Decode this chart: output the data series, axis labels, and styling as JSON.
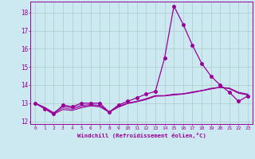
{
  "xlabel": "Windchill (Refroidissement éolien,°C)",
  "background_color": "#cce8f0",
  "grid_color": "#aacccc",
  "line_color": "#990099",
  "x_ticks": [
    0,
    1,
    2,
    3,
    4,
    5,
    6,
    7,
    8,
    9,
    10,
    11,
    12,
    13,
    14,
    15,
    16,
    17,
    18,
    19,
    20,
    21,
    22,
    23
  ],
  "ylim": [
    11.85,
    18.6
  ],
  "xlim": [
    -0.5,
    23.5
  ],
  "yticks": [
    12,
    13,
    14,
    15,
    16,
    17,
    18
  ],
  "series": [
    {
      "x": [
        0,
        1,
        2,
        3,
        4,
        5,
        6,
        7,
        8,
        9,
        10,
        11,
        12,
        13,
        14,
        15,
        16,
        17,
        18,
        19,
        20,
        21,
        22,
        23
      ],
      "y": [
        13.0,
        12.7,
        12.4,
        12.9,
        12.8,
        13.0,
        13.0,
        13.0,
        12.5,
        12.9,
        13.1,
        13.3,
        13.5,
        13.65,
        15.5,
        18.35,
        17.35,
        16.2,
        15.2,
        14.5,
        14.0,
        13.6,
        13.1,
        13.4
      ],
      "marker": "o",
      "marker_size": 2.5,
      "linewidth": 0.9,
      "linestyle": "-"
    },
    {
      "x": [
        0,
        1,
        2,
        3,
        4,
        5,
        6,
        7,
        8,
        9,
        10,
        11,
        12,
        13,
        14,
        15,
        16,
        17,
        18,
        19,
        20,
        21,
        22,
        23
      ],
      "y": [
        13.0,
        12.7,
        12.4,
        12.65,
        12.6,
        12.75,
        12.85,
        12.8,
        12.5,
        12.78,
        12.98,
        13.08,
        13.2,
        13.38,
        13.4,
        13.45,
        13.5,
        13.58,
        13.68,
        13.78,
        13.88,
        13.8,
        13.55,
        13.45
      ],
      "marker": null,
      "marker_size": 0,
      "linewidth": 0.8,
      "linestyle": "-"
    },
    {
      "x": [
        0,
        1,
        2,
        3,
        4,
        5,
        6,
        7,
        8,
        9,
        10,
        11,
        12,
        13,
        14,
        15,
        16,
        17,
        18,
        19,
        20,
        21,
        22,
        23
      ],
      "y": [
        13.0,
        12.78,
        12.48,
        12.82,
        12.75,
        12.88,
        12.92,
        12.88,
        12.52,
        12.83,
        13.01,
        13.11,
        13.25,
        13.42,
        13.42,
        13.5,
        13.52,
        13.62,
        13.7,
        13.82,
        13.88,
        13.83,
        13.6,
        13.5
      ],
      "marker": null,
      "marker_size": 0,
      "linewidth": 0.7,
      "linestyle": "-"
    },
    {
      "x": [
        0,
        1,
        2,
        3,
        4,
        5,
        6,
        7,
        8,
        9,
        10,
        11,
        12,
        13,
        14,
        15,
        16,
        17,
        18,
        19,
        20,
        21,
        22,
        23
      ],
      "y": [
        13.0,
        12.74,
        12.44,
        12.74,
        12.67,
        12.82,
        12.88,
        12.84,
        12.51,
        12.8,
        12.99,
        13.09,
        13.22,
        13.4,
        13.41,
        13.47,
        13.51,
        13.6,
        13.69,
        13.8,
        13.86,
        13.82,
        13.57,
        13.47
      ],
      "marker": null,
      "marker_size": 0,
      "linewidth": 0.6,
      "linestyle": "-"
    }
  ]
}
